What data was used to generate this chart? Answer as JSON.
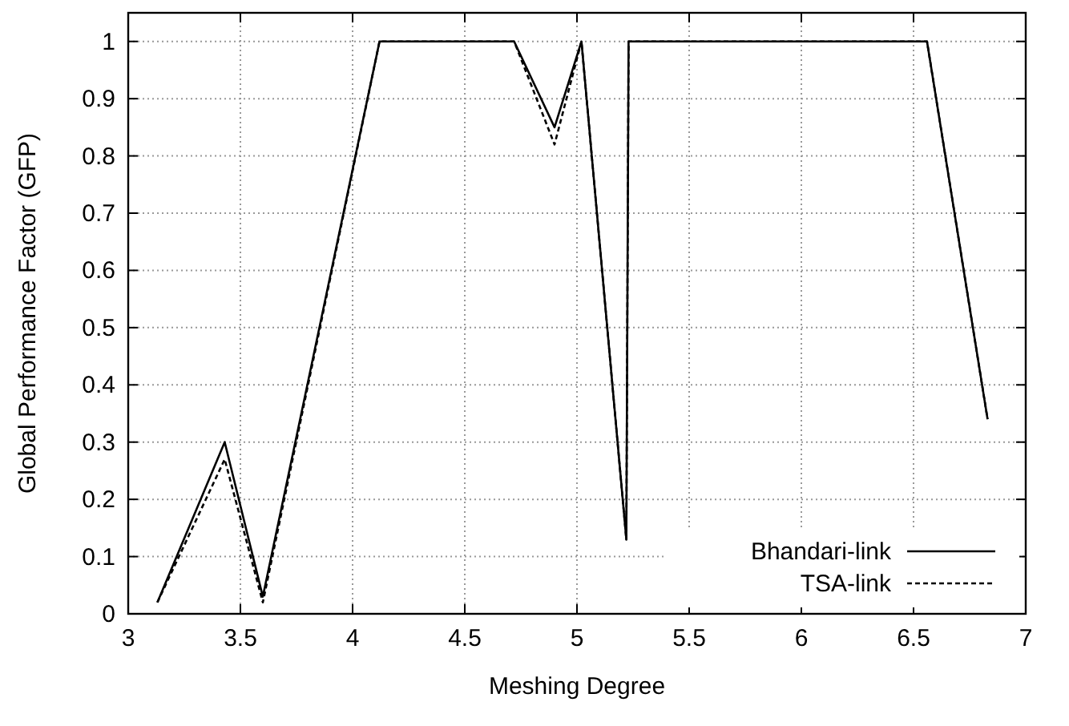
{
  "chart_data": {
    "type": "line",
    "xlabel": "Meshing Degree",
    "ylabel": "Global Performance Factor (GFP)",
    "xlim": [
      3,
      7
    ],
    "xticks": [
      3,
      3.5,
      4,
      4.5,
      5,
      5.5,
      6,
      6.5,
      7
    ],
    "ylim": [
      0,
      1.05
    ],
    "yticks": [
      0,
      0.1,
      0.2,
      0.3,
      0.4,
      0.5,
      0.6,
      0.7,
      0.8,
      0.9,
      1
    ],
    "grid": true,
    "legend": "bottom right",
    "series": [
      {
        "name": "Bhandari-link",
        "color": "#000000",
        "line_style": "solid",
        "x": [
          3.13,
          3.43,
          3.6,
          4.12,
          4.72,
          4.9,
          5.02,
          5.22,
          5.23,
          6.56,
          6.83
        ],
        "values": [
          0.02,
          0.3,
          0.03,
          1,
          1,
          0.85,
          1,
          0.13,
          1,
          1,
          0.34
        ]
      },
      {
        "name": "TSA-link",
        "color": "#000000",
        "line_style": "dashed",
        "x": [
          3.13,
          3.43,
          3.6,
          4.12,
          4.72,
          4.9,
          5.02,
          5.22,
          5.23,
          6.56,
          6.83
        ],
        "values": [
          0.02,
          0.27,
          0.02,
          1,
          1,
          0.82,
          1,
          0.13,
          1,
          1,
          0.34
        ]
      }
    ]
  }
}
